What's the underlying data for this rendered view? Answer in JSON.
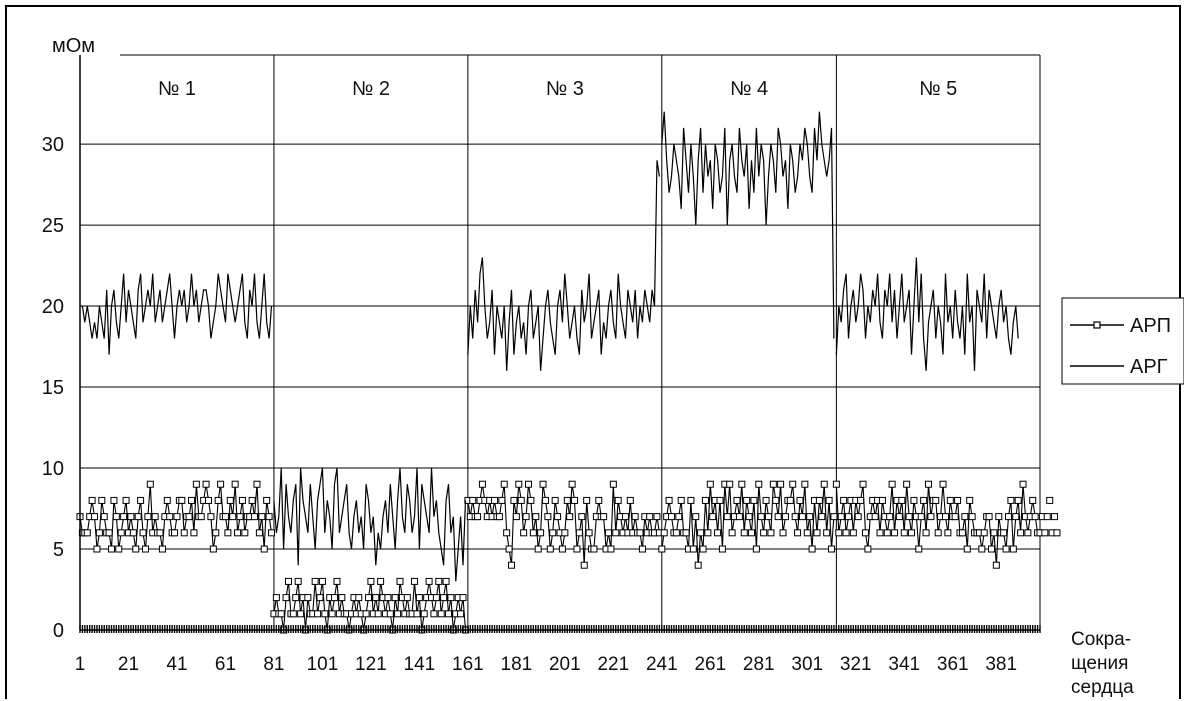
{
  "chart_data": {
    "type": "line",
    "ylabel": "мОм",
    "xlabel_lines": [
      "Сокра-",
      "щения",
      "сердца"
    ],
    "yticks": [
      0,
      5,
      10,
      15,
      20,
      25,
      30
    ],
    "ylim": [
      0,
      35.5
    ],
    "xlim": [
      1,
      397
    ],
    "xticks": [
      1,
      21,
      41,
      61,
      81,
      101,
      121,
      141,
      161,
      181,
      201,
      221,
      241,
      261,
      281,
      301,
      321,
      341,
      361,
      381
    ],
    "grid": true,
    "legend_position": "right",
    "panels": [
      {
        "label": "№ 1",
        "x_start": 1,
        "x_end": 81
      },
      {
        "label": "№ 2",
        "x_start": 81,
        "x_end": 161
      },
      {
        "label": "№ 3",
        "x_start": 161,
        "x_end": 241
      },
      {
        "label": "№ 4",
        "x_start": 241,
        "x_end": 313
      },
      {
        "label": "№ 5",
        "x_start": 313,
        "x_end": 397
      }
    ],
    "series": [
      {
        "name": "АРП",
        "marker": "square",
        "values": [
          7,
          6,
          6,
          6,
          7,
          8,
          7,
          5,
          6,
          8,
          7,
          6,
          6,
          5,
          8,
          7,
          5,
          6,
          7,
          8,
          6,
          7,
          6,
          5,
          7,
          8,
          6,
          5,
          7,
          9,
          6,
          7,
          6,
          6,
          5,
          7,
          8,
          7,
          6,
          6,
          7,
          8,
          8,
          6,
          7,
          7,
          8,
          6,
          9,
          7,
          7,
          8,
          9,
          8,
          7,
          5,
          6,
          8,
          9,
          7,
          7,
          6,
          8,
          7,
          9,
          6,
          7,
          8,
          6,
          7,
          7,
          8,
          7,
          9,
          6,
          7,
          5,
          8,
          7,
          6,
          1,
          2,
          1,
          1,
          0,
          2,
          3,
          1,
          1,
          2,
          3,
          1,
          2,
          0,
          2,
          1,
          1,
          3,
          1,
          2,
          3,
          1,
          0,
          2,
          1,
          2,
          3,
          1,
          2,
          1,
          1,
          0,
          1,
          2,
          1,
          2,
          1,
          0,
          1,
          2,
          3,
          1,
          2,
          1,
          3,
          2,
          1,
          2,
          1,
          0,
          2,
          1,
          3,
          2,
          1,
          2,
          1,
          1,
          3,
          1,
          2,
          0,
          1,
          2,
          3,
          2,
          1,
          2,
          3,
          1,
          2,
          3,
          1,
          2,
          0,
          1,
          2,
          1,
          2,
          0,
          8,
          7,
          8,
          7,
          7,
          8,
          9,
          8,
          7,
          8,
          7,
          8,
          7,
          7,
          8,
          9,
          6,
          5,
          4,
          8,
          7,
          9,
          8,
          6,
          7,
          9,
          8,
          6,
          7,
          5,
          6,
          9,
          8,
          7,
          5,
          6,
          8,
          7,
          6,
          5,
          6,
          8,
          7,
          9,
          8,
          5,
          6,
          7,
          4,
          8,
          6,
          5,
          5,
          7,
          8,
          7,
          7,
          5,
          6,
          5,
          9,
          6,
          8,
          7,
          6,
          7,
          6,
          8,
          6,
          7,
          6,
          6,
          5,
          7,
          6,
          7,
          6,
          6,
          7,
          6,
          5,
          6,
          7,
          8,
          7,
          6,
          6,
          7,
          8,
          6,
          6,
          5,
          8,
          5,
          7,
          4,
          6,
          5,
          8,
          6,
          9,
          7,
          8,
          6,
          8,
          5,
          9,
          7,
          9,
          6,
          7,
          8,
          7,
          9,
          6,
          8,
          7,
          6,
          8,
          5,
          9,
          7,
          6,
          8,
          7,
          6,
          9,
          8,
          7,
          9,
          6,
          7,
          8,
          8,
          9,
          7,
          6,
          8,
          7,
          9,
          6,
          7,
          5,
          8,
          6,
          8,
          7,
          9,
          6,
          8,
          5,
          7,
          9,
          6,
          7,
          8,
          6,
          7,
          8,
          6,
          8,
          7,
          8,
          9,
          6,
          5,
          7,
          8,
          7,
          8,
          6,
          8,
          7,
          6,
          7,
          9,
          6,
          8,
          7,
          8,
          6,
          9,
          7,
          6,
          8,
          7,
          5,
          7,
          8,
          6,
          9,
          7,
          8,
          8,
          6,
          7,
          9,
          7,
          6,
          8,
          7,
          7,
          8,
          6,
          6,
          7,
          5,
          8,
          7,
          6,
          6,
          6,
          5,
          6,
          7,
          7,
          5,
          6,
          4,
          7,
          6,
          6,
          5,
          7,
          8,
          5,
          7,
          8,
          6,
          9,
          7,
          6,
          7,
          8,
          7,
          6,
          6,
          7,
          6,
          7,
          8,
          6,
          7,
          6
        ]
      },
      {
        "name": "АРГ",
        "marker": "none",
        "values": [
          20,
          20,
          19,
          20,
          19,
          18,
          19,
          18,
          20,
          19,
          18,
          21,
          17,
          20,
          21,
          19,
          18,
          20,
          22,
          19,
          21,
          20,
          19,
          18,
          21,
          22,
          19,
          20,
          21,
          20,
          22,
          19,
          20,
          21,
          19,
          20,
          21,
          22,
          20,
          18,
          20,
          21,
          20,
          21,
          19,
          20,
          22,
          20,
          21,
          19,
          20,
          21,
          21,
          20,
          18,
          19,
          20,
          22,
          21,
          20,
          19,
          22,
          21,
          20,
          19,
          20,
          21,
          22,
          19,
          18,
          21,
          20,
          22,
          19,
          18,
          20,
          22,
          19,
          18,
          20,
          8,
          6,
          7,
          10,
          5,
          9,
          7,
          6,
          8,
          9,
          4,
          10,
          8,
          7,
          6,
          9,
          7,
          5,
          8,
          9,
          10,
          6,
          8,
          7,
          5,
          9,
          10,
          6,
          7,
          8,
          9,
          6,
          5,
          7,
          8,
          6,
          7,
          5,
          9,
          8,
          6,
          7,
          4,
          6,
          5,
          7,
          8,
          6,
          9,
          7,
          5,
          8,
          10,
          7,
          6,
          9,
          8,
          6,
          7,
          10,
          5,
          9,
          8,
          7,
          6,
          10,
          7,
          8,
          6,
          5,
          4,
          8,
          9,
          6,
          7,
          3,
          5,
          7,
          4,
          8,
          17,
          20,
          18,
          21,
          19,
          22,
          23,
          20,
          18,
          19,
          21,
          17,
          20,
          19,
          18,
          20,
          16,
          19,
          21,
          17,
          19,
          20,
          18,
          19,
          17,
          20,
          21,
          18,
          19,
          20,
          16,
          18,
          20,
          21,
          19,
          18,
          17,
          20,
          21,
          19,
          22,
          20,
          18,
          19,
          20,
          18,
          17,
          21,
          19,
          20,
          22,
          18,
          19,
          20,
          21,
          17,
          19,
          18,
          20,
          21,
          19,
          18,
          22,
          20,
          19,
          18,
          21,
          20,
          19,
          21,
          18,
          20,
          19,
          21,
          20,
          19,
          21,
          20,
          29,
          28,
          30,
          32,
          29,
          27,
          28,
          30,
          29,
          28,
          26,
          31,
          29,
          27,
          30,
          28,
          25,
          29,
          31,
          27,
          30,
          28,
          29,
          26,
          30,
          29,
          27,
          28,
          31,
          25,
          29,
          30,
          28,
          27,
          31,
          29,
          28,
          30,
          26,
          29,
          27,
          31,
          28,
          30,
          29,
          25,
          28,
          30,
          29,
          27,
          31,
          30,
          28,
          29,
          26,
          30,
          29,
          27,
          28,
          30,
          29,
          31,
          30,
          28,
          27,
          31,
          29,
          32,
          30,
          29,
          28,
          29,
          31,
          18,
          17,
          20,
          19,
          21,
          22,
          18,
          20,
          21,
          19,
          20,
          22,
          21,
          18,
          20,
          19,
          21,
          20,
          22,
          19,
          18,
          21,
          20,
          22,
          19,
          21,
          18,
          20,
          22,
          19,
          20,
          21,
          17,
          20,
          23,
          19,
          22,
          18,
          16,
          19,
          20,
          21,
          18,
          20,
          19,
          17,
          22,
          19,
          20,
          18,
          21,
          19,
          18,
          20,
          17,
          22,
          19,
          20,
          16,
          21,
          20,
          19,
          22,
          18,
          21,
          20,
          19,
          18,
          20,
          21,
          19,
          20,
          18,
          17,
          19,
          20,
          18
        ]
      }
    ]
  }
}
